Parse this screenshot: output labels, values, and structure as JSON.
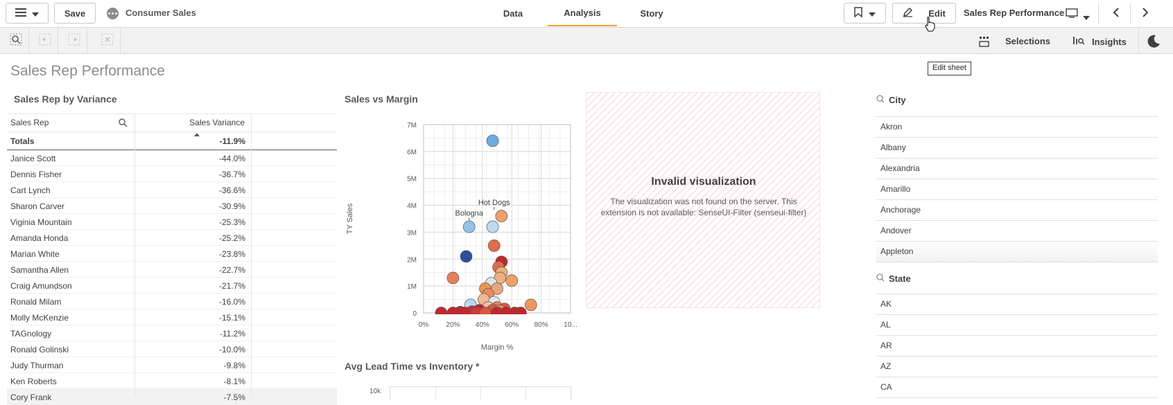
{
  "app": {
    "name": "Consumer Sales",
    "save_label": "Save"
  },
  "tabs": [
    {
      "label": "Data"
    },
    {
      "label": "Analysis",
      "active": true
    },
    {
      "label": "Story"
    }
  ],
  "header": {
    "edit_label": "Edit",
    "sheet_name": "Sales Rep Performance",
    "tooltip": "Edit sheet"
  },
  "toolbar": {
    "selections_label": "Selections",
    "insights_label": "Insights"
  },
  "sheet_title": "Sales Rep Performance",
  "table": {
    "title": "Sales Rep by Variance",
    "columns": [
      "Sales Rep",
      "Sales Variance"
    ],
    "totals_label": "Totals",
    "totals_value": "-11.9%",
    "rows": [
      {
        "rep": "Janice Scott",
        "variance": "-44.0%"
      },
      {
        "rep": "Dennis Fisher",
        "variance": "-36.7%"
      },
      {
        "rep": "Cart Lynch",
        "variance": "-36.6%"
      },
      {
        "rep": "Sharon Carver",
        "variance": "-30.9%"
      },
      {
        "rep": "Viginia Mountain",
        "variance": "-25.3%"
      },
      {
        "rep": "Amanda Honda",
        "variance": "-25.2%"
      },
      {
        "rep": "Marian White",
        "variance": "-23.8%"
      },
      {
        "rep": "Samantha Allen",
        "variance": "-22.7%"
      },
      {
        "rep": "Craig Amundson",
        "variance": "-21.7%"
      },
      {
        "rep": "Ronald Milam",
        "variance": "-16.0%"
      },
      {
        "rep": "Molly McKenzie",
        "variance": "-15.1%"
      },
      {
        "rep": "TAGnology",
        "variance": "-11.2%"
      },
      {
        "rep": "Ronald Golinski",
        "variance": "-10.0%"
      },
      {
        "rep": "Judy Thurman",
        "variance": "-9.8%"
      },
      {
        "rep": "Ken Roberts",
        "variance": "-8.1%"
      },
      {
        "rep": "Cory Frank",
        "variance": "-7.5%"
      }
    ]
  },
  "chart_data": [
    {
      "type": "scatter",
      "title": "Sales vs Margin",
      "xlabel": "Margin %",
      "ylabel": "TY Sales",
      "xlim": [
        0,
        100
      ],
      "ylim": [
        0,
        7000000
      ],
      "x_ticks": [
        "0%",
        "20%",
        "40%",
        "60%",
        "80%",
        "10..."
      ],
      "y_ticks": [
        "0",
        "1M",
        "2M",
        "3M",
        "4M",
        "5M",
        "6M",
        "7M"
      ],
      "grid": true,
      "annotations": [
        {
          "label": "Bologna",
          "x": 31,
          "y": 3200000
        },
        {
          "label": "Hot Dogs",
          "x": 48,
          "y": 3600000
        }
      ],
      "points": [
        {
          "x": 47,
          "y": 6400000,
          "color": "#6aaee0"
        },
        {
          "x": 31,
          "y": 3200000,
          "color": "#8fc4ec"
        },
        {
          "x": 47,
          "y": 3200000,
          "color": "#bcdcf3"
        },
        {
          "x": 53,
          "y": 3600000,
          "color": "#f2a068"
        },
        {
          "x": 48,
          "y": 2500000,
          "color": "#e06c4a"
        },
        {
          "x": 29,
          "y": 2100000,
          "color": "#2c4ea0"
        },
        {
          "x": 53,
          "y": 1900000,
          "color": "#c0282d"
        },
        {
          "x": 51,
          "y": 1700000,
          "color": "#e06c4a"
        },
        {
          "x": 53,
          "y": 1500000,
          "color": "#f0b07a"
        },
        {
          "x": 20,
          "y": 1300000,
          "color": "#e68053"
        },
        {
          "x": 52,
          "y": 1300000,
          "color": "#f0b07a"
        },
        {
          "x": 60,
          "y": 1200000,
          "color": "#f2a068"
        },
        {
          "x": 46,
          "y": 1100000,
          "color": "#e0e6ea"
        },
        {
          "x": 42,
          "y": 900000,
          "color": "#f0964e"
        },
        {
          "x": 50,
          "y": 900000,
          "color": "#e8a57e"
        },
        {
          "x": 44,
          "y": 700000,
          "color": "#ea8a5c"
        },
        {
          "x": 41,
          "y": 500000,
          "color": "#f2b894"
        },
        {
          "x": 48,
          "y": 400000,
          "color": "#e0e6ea"
        },
        {
          "x": 32,
          "y": 300000,
          "color": "#b5daf3"
        },
        {
          "x": 73,
          "y": 300000,
          "color": "#f0945c"
        },
        {
          "x": 44,
          "y": 200000,
          "color": "#eec6a8"
        },
        {
          "x": 50,
          "y": 200000,
          "color": "#e97e55"
        },
        {
          "x": 55,
          "y": 150000,
          "color": "#d9583f"
        },
        {
          "x": 38,
          "y": 100000,
          "color": "#c0282d"
        },
        {
          "x": 47,
          "y": 100000,
          "color": "#d9583f"
        },
        {
          "x": 52,
          "y": 80000,
          "color": "#e98b5f"
        },
        {
          "x": 33,
          "y": 50000,
          "color": "#c8303a"
        },
        {
          "x": 25,
          "y": 30000,
          "color": "#c0282d"
        },
        {
          "x": 20,
          "y": 0,
          "color": "#c0282d"
        },
        {
          "x": 12,
          "y": 0,
          "color": "#c0282d"
        },
        {
          "x": 28,
          "y": 0,
          "color": "#c0282d"
        },
        {
          "x": 36,
          "y": 0,
          "color": "#d03a38"
        },
        {
          "x": 42,
          "y": 0,
          "color": "#d9583f"
        },
        {
          "x": 50,
          "y": 0,
          "color": "#c0282d"
        },
        {
          "x": 56,
          "y": 0,
          "color": "#c0282d"
        },
        {
          "x": 62,
          "y": 0,
          "color": "#c0282d"
        },
        {
          "x": 66,
          "y": 0,
          "color": "#c0282d"
        }
      ]
    },
    {
      "type": "line",
      "title": "Avg Lead Time vs Inventory *",
      "y_ticks": [
        "10k"
      ]
    }
  ],
  "invalid_viz": {
    "title": "Invalid visualization",
    "message": "The visualization was not found on the server. This extension is not available: SenseUI-Filter (senseui-filter)"
  },
  "city_filter": {
    "title": "City",
    "items": [
      "Akron",
      "Albany",
      "Alexandria",
      "Amarillo",
      "Anchorage",
      "Andover",
      "Appleton"
    ]
  },
  "state_filter": {
    "title": "State",
    "items": [
      "AK",
      "AL",
      "AR",
      "AZ",
      "CA"
    ]
  }
}
